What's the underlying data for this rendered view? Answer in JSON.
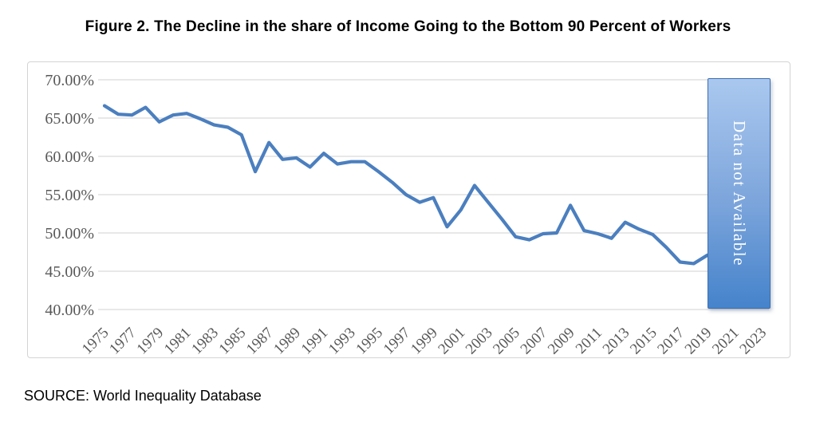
{
  "title": "Figure 2. The Decline in the share of Income Going to the Bottom 90 Percent of Workers",
  "source": "SOURCE: World Inequality Database",
  "annotation": {
    "text": "Data not Available",
    "region_years": [
      2020,
      2023
    ]
  },
  "colors": {
    "line": "#4b7fbf",
    "grid": "#d9d9d9",
    "tick_label": "#595959",
    "box_top": "#aac8ef",
    "box_bottom": "#4583cb",
    "box_border": "#3f6fae",
    "box_text": "#ffffff",
    "frame_border": "#d4d4d4",
    "title_text": "#000000"
  },
  "chart_data": {
    "type": "line",
    "title": "Figure 2. The Decline in the share of Income Going to the Bottom 90 Percent of Workers",
    "xlabel": "",
    "ylabel": "",
    "ylim": [
      40,
      70
    ],
    "grid": true,
    "legend": "none",
    "x_displayed_range": [
      1975,
      2023
    ],
    "y_tick_values": [
      70,
      65,
      60,
      55,
      50,
      45,
      40
    ],
    "y_tick_labels": [
      "70.00%",
      "65.00%",
      "60.00%",
      "55.00%",
      "50.00%",
      "45.00%",
      "40.00%"
    ],
    "x_tick_labels": [
      "1975",
      "1977",
      "1979",
      "1981",
      "1983",
      "1985",
      "1987",
      "1989",
      "1991",
      "1993",
      "1995",
      "1997",
      "1999",
      "2001",
      "2003",
      "2005",
      "2007",
      "2009",
      "2011",
      "2013",
      "2015",
      "2017",
      "2019",
      "2021",
      "2023"
    ],
    "x": [
      1975,
      1976,
      1977,
      1978,
      1979,
      1980,
      1981,
      1982,
      1983,
      1984,
      1985,
      1986,
      1987,
      1988,
      1989,
      1990,
      1991,
      1992,
      1993,
      1994,
      1995,
      1996,
      1997,
      1998,
      1999,
      2000,
      2001,
      2002,
      2003,
      2004,
      2005,
      2006,
      2007,
      2008,
      2009,
      2010,
      2011,
      2012,
      2013,
      2014,
      2015,
      2016,
      2017,
      2018,
      2019
    ],
    "values": [
      66.6,
      65.5,
      65.4,
      66.4,
      64.5,
      65.4,
      65.6,
      64.9,
      64.1,
      63.8,
      62.8,
      58.0,
      61.8,
      59.6,
      59.8,
      58.6,
      60.4,
      59.0,
      59.3,
      59.3,
      58.0,
      56.6,
      55.0,
      54.0,
      54.6,
      50.8,
      53.0,
      56.2,
      54.0,
      51.8,
      49.5,
      49.1,
      49.9,
      50.0,
      53.6,
      50.3,
      49.9,
      49.3,
      51.4,
      50.5,
      49.8,
      48.1,
      46.2,
      46.0,
      47.1
    ],
    "annotation": "Data not Available"
  }
}
